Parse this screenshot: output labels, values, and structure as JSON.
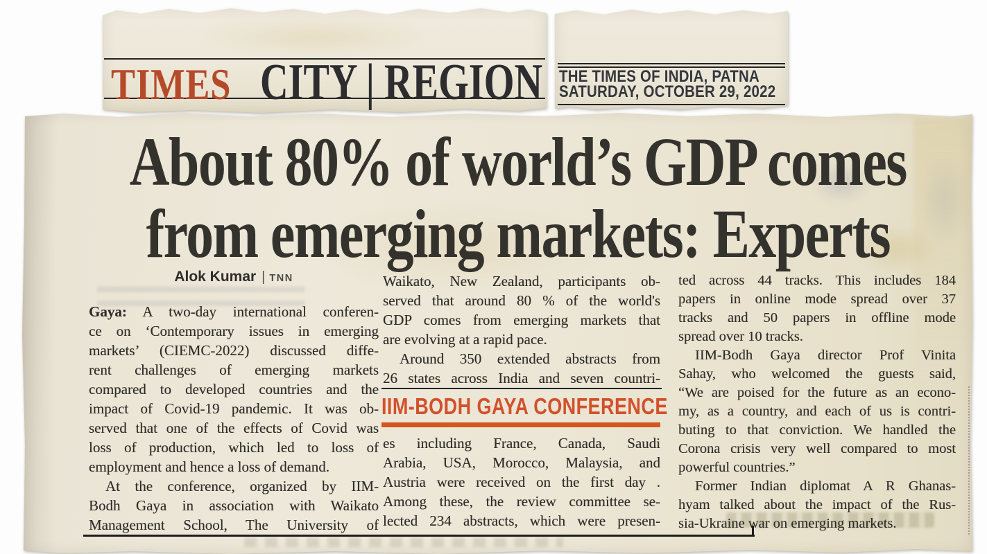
{
  "masthead": {
    "brand": "TIMES",
    "brand_color": "#b54a2b",
    "section": "CITY | REGION",
    "edition": {
      "line1": "THE TIMES OF INDIA, PATNA",
      "line2": "SATURDAY, OCTOBER 29, 2022"
    }
  },
  "article": {
    "headline": {
      "line1": "About 80% of world’s GDP comes",
      "line2": "from emerging markets: Experts"
    },
    "byline": {
      "author": "Alok Kumar",
      "separator": "|",
      "agency": "TNN"
    },
    "subhead": {
      "label": "IIM-BODH GAYA CONFERENCE",
      "color": "#d2512b",
      "bar_color": "#d4571c"
    },
    "colors": {
      "paper": "#ece6d7",
      "ink": "#2e2c28",
      "rule": "#232323"
    },
    "columns": {
      "col1": [
        {
          "lead": "Gaya:",
          "text": " A two-day international conferen-"
        },
        "ce on ‘Contemporary issues in emerging",
        "markets’ (CIEMC-2022) discussed diffe-",
        "rent challenges of emerging markets",
        "compared to developed countries and the",
        "impact of Covid-19 pandemic. It was ob-",
        "served that one of the effects of Covid was",
        "loss of production, which led to loss of",
        {
          "text": "employment and hence a loss of demand.",
          "end": true
        },
        {
          "text": "At the conference, organized by IIM-",
          "indent": true
        },
        "Bodh Gaya in association with Waikato",
        "Management School, The University of"
      ],
      "col2_top": [
        "Waikato, New Zealand, participants ob-",
        "served that around 80 % of the world's",
        "GDP comes from emerging markets that",
        {
          "text": "are evolving at a rapid pace.",
          "end": true
        },
        {
          "text": "Around 350 extended abstracts from",
          "indent": true
        },
        "26 states across India and seven countri-"
      ],
      "col2_bottom": [
        "es including France, Canada, Saudi",
        "Arabia, USA, Morocco, Malaysia, and",
        "Austria were received on the first day .",
        "Among these, the review committee se-",
        "lected 234 abstracts, which were presen-"
      ],
      "col3": [
        "ted across 44 tracks. This includes 184",
        "papers in online mode spread over 37",
        "tracks and 50 papers in offline mode",
        {
          "text": "spread over 10 tracks.",
          "end": true
        },
        {
          "text": "IIM-Bodh Gaya director Prof Vinita",
          "indent": true
        },
        "Sahay, who welcomed the guests said,",
        "“We are poised for the future as an econo-",
        "my, as a country, and each of us is contri-",
        "buting to that conviction. We handled the",
        "Corona crisis very well compared to most",
        {
          "text": "powerful countries.”",
          "end": true
        },
        {
          "text": "Former Indian diplomat A R Ghanas-",
          "indent": true
        },
        "hyam talked about the impact of the Rus-",
        {
          "text": "sia-Ukraine war on emerging markets.",
          "end": true
        }
      ]
    }
  }
}
